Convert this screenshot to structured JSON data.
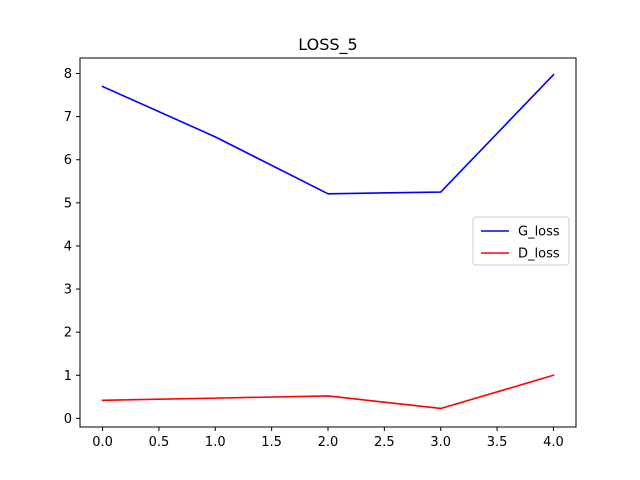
{
  "chart_data": {
    "type": "line",
    "title": "LOSS_5",
    "xlabel": "",
    "ylabel": "",
    "x": [
      0,
      1,
      2,
      3,
      4
    ],
    "xlim": [
      -0.2,
      4.2
    ],
    "ylim": [
      -0.2,
      8.36
    ],
    "xticks": [
      "0.0",
      "0.5",
      "1.0",
      "1.5",
      "2.0",
      "2.5",
      "3.0",
      "3.5",
      "4.0"
    ],
    "xtick_values": [
      0,
      0.5,
      1,
      1.5,
      2,
      2.5,
      3,
      3.5,
      4
    ],
    "yticks": [
      "0",
      "1",
      "2",
      "3",
      "4",
      "5",
      "6",
      "7",
      "8"
    ],
    "ytick_values": [
      0,
      1,
      2,
      3,
      4,
      5,
      6,
      7,
      8
    ],
    "grid": false,
    "legend_position": "center-right",
    "series": [
      {
        "name": "G_loss",
        "color": "#0000ff",
        "values": [
          7.7,
          6.53,
          5.21,
          5.25,
          7.97
        ]
      },
      {
        "name": "D_loss",
        "color": "#ff0000",
        "values": [
          0.42,
          0.47,
          0.52,
          0.23,
          1.0
        ]
      }
    ]
  }
}
